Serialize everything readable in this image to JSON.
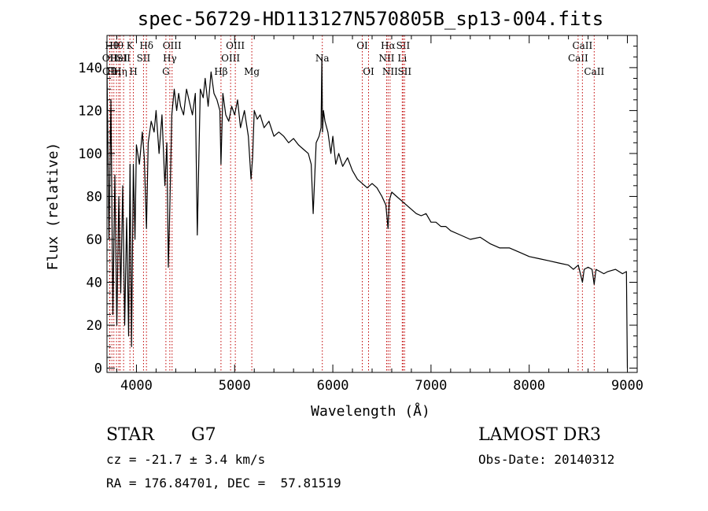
{
  "chart_data": {
    "type": "line",
    "title": "spec-56729-HD113127N570805B_sp13-004.fits",
    "xlabel": "Wavelength (Å)",
    "ylabel": "Flux (relative)",
    "xlim": [
      3700,
      9100
    ],
    "ylim": [
      -2,
      155
    ],
    "xticks": [
      4000,
      5000,
      6000,
      7000,
      8000,
      9000
    ],
    "yticks": [
      0,
      20,
      40,
      60,
      80,
      100,
      120,
      140
    ],
    "series": [
      {
        "name": "spectrum",
        "x": [
          3700,
          3720,
          3740,
          3760,
          3780,
          3800,
          3820,
          3840,
          3860,
          3880,
          3900,
          3920,
          3935,
          3950,
          3968,
          3985,
          4000,
          4030,
          4060,
          4080,
          4102,
          4120,
          4150,
          4180,
          4200,
          4230,
          4260,
          4290,
          4310,
          4325,
          4340,
          4360,
          4385,
          4410,
          4430,
          4450,
          4480,
          4510,
          4540,
          4570,
          4600,
          4620,
          4650,
          4680,
          4700,
          4730,
          4760,
          4790,
          4820,
          4850,
          4861,
          4880,
          4910,
          4940,
          4970,
          5000,
          5030,
          5060,
          5100,
          5140,
          5167,
          5183,
          5200,
          5230,
          5260,
          5300,
          5350,
          5400,
          5450,
          5500,
          5550,
          5600,
          5650,
          5700,
          5750,
          5780,
          5800,
          5830,
          5860,
          5880,
          5889,
          5895,
          5905,
          5920,
          5950,
          5980,
          6000,
          6030,
          6060,
          6100,
          6150,
          6200,
          6250,
          6300,
          6350,
          6400,
          6450,
          6500,
          6540,
          6563,
          6575,
          6600,
          6650,
          6700,
          6750,
          6800,
          6850,
          6900,
          6950,
          7000,
          7050,
          7100,
          7150,
          7200,
          7300,
          7400,
          7500,
          7600,
          7700,
          7800,
          7900,
          8000,
          8100,
          8200,
          8300,
          8400,
          8450,
          8500,
          8542,
          8560,
          8600,
          8640,
          8662,
          8680,
          8720,
          8760,
          8800,
          8880,
          8950,
          8990,
          9000
        ],
        "y": [
          140,
          60,
          125,
          25,
          90,
          20,
          80,
          35,
          85,
          20,
          70,
          15,
          95,
          10,
          95,
          60,
          104,
          95,
          110,
          98,
          65,
          105,
          115,
          110,
          120,
          100,
          118,
          85,
          105,
          47,
          75,
          118,
          130,
          120,
          128,
          122,
          118,
          130,
          124,
          118,
          128,
          62,
          130,
          126,
          135,
          122,
          138,
          128,
          125,
          120,
          95,
          128,
          118,
          115,
          122,
          118,
          125,
          112,
          120,
          108,
          88,
          98,
          120,
          116,
          118,
          112,
          115,
          108,
          110,
          108,
          105,
          107,
          104,
          102,
          100,
          95,
          72,
          105,
          108,
          112,
          145,
          110,
          120,
          115,
          110,
          100,
          108,
          95,
          100,
          94,
          98,
          92,
          88,
          86,
          84,
          86,
          84,
          80,
          76,
          65,
          78,
          82,
          80,
          78,
          76,
          74,
          72,
          71,
          72,
          68,
          68,
          66,
          66,
          64,
          62,
          60,
          61,
          58,
          56,
          56,
          54,
          52,
          51,
          50,
          49,
          48,
          46,
          48,
          40,
          46,
          47,
          46,
          39,
          46,
          45,
          44,
          45,
          46,
          44,
          45,
          0
        ]
      }
    ],
    "line_markers": [
      {
        "wl": 3727,
        "label": "OII",
        "row": 2
      },
      {
        "wl": 3729,
        "label": "OII",
        "row": 3
      },
      {
        "wl": 3750,
        "label": "Hθ",
        "row": 1
      },
      {
        "wl": 3770,
        "label": "Hη",
        "row": 3
      },
      {
        "wl": 3797,
        "label": "Hθ",
        "row": 1
      },
      {
        "wl": 3820,
        "label": "HeI",
        "row": 2
      },
      {
        "wl": 3835,
        "label": "Hη",
        "row": 3
      },
      {
        "wl": 3869,
        "label": "SII",
        "row": 2
      },
      {
        "wl": 3934,
        "label": "K",
        "row": 1
      },
      {
        "wl": 3969,
        "label": "H",
        "row": 3
      },
      {
        "wl": 4072,
        "label": "SII",
        "row": 2
      },
      {
        "wl": 4102,
        "label": "Hδ",
        "row": 1
      },
      {
        "wl": 4300,
        "label": "G",
        "row": 3
      },
      {
        "wl": 4340,
        "label": "Hγ",
        "row": 2
      },
      {
        "wl": 4363,
        "label": "OIII",
        "row": 1
      },
      {
        "wl": 4861,
        "label": "Hβ",
        "row": 3
      },
      {
        "wl": 4959,
        "label": "OIII",
        "row": 2
      },
      {
        "wl": 5007,
        "label": "OIII",
        "row": 1
      },
      {
        "wl": 5175,
        "label": "Mg",
        "row": 3
      },
      {
        "wl": 5893,
        "label": "Na",
        "row": 2
      },
      {
        "wl": 6300,
        "label": "OI",
        "row": 1
      },
      {
        "wl": 6364,
        "label": "OI",
        "row": 3
      },
      {
        "wl": 6548,
        "label": "NII",
        "row": 2
      },
      {
        "wl": 6563,
        "label": "Hα",
        "row": 1
      },
      {
        "wl": 6583,
        "label": "NII",
        "row": 3
      },
      {
        "wl": 6707,
        "label": "Li",
        "row": 2
      },
      {
        "wl": 6716,
        "label": "SII",
        "row": 1
      },
      {
        "wl": 6731,
        "label": "SII",
        "row": 3
      },
      {
        "wl": 8498,
        "label": "CaII",
        "row": 2
      },
      {
        "wl": 8542,
        "label": "CaII",
        "row": 1
      },
      {
        "wl": 8662,
        "label": "CaII",
        "row": 3
      }
    ],
    "colors": {
      "spectrum": "#000000",
      "marker": "#c00000",
      "axes": "#000000"
    }
  },
  "info": {
    "class": "STAR",
    "subclass": "G7",
    "survey": "LAMOST DR3",
    "cz": "cz = -21.7 ± 3.4 km/s",
    "obs_date": "Obs-Date: 20140312",
    "radec": "RA = 176.84701, DEC =  57.81519"
  }
}
